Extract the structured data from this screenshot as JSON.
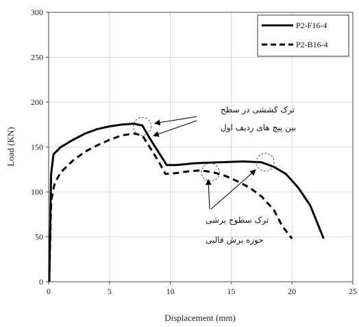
{
  "chart_data": {
    "type": "line",
    "xlabel": "Displacement (mm)",
    "ylabel": "Load (KN)",
    "xlim": [
      0,
      25
    ],
    "ylim": [
      0,
      300
    ],
    "xticks": [
      0,
      5,
      10,
      15,
      20,
      25
    ],
    "yticks": [
      0,
      50,
      100,
      150,
      200,
      250,
      300
    ],
    "grid": true,
    "legend_position": "top-right",
    "series": [
      {
        "name": "P2-F16-4",
        "style": "solid",
        "color": "#000000",
        "points": [
          [
            0.05,
            0
          ],
          [
            0.1,
            40
          ],
          [
            0.2,
            120
          ],
          [
            0.4,
            142
          ],
          [
            1,
            150
          ],
          [
            2,
            158
          ],
          [
            3,
            165
          ],
          [
            4,
            170
          ],
          [
            5,
            173
          ],
          [
            6,
            175
          ],
          [
            7,
            176
          ],
          [
            7.7,
            174
          ],
          [
            8.3,
            160
          ],
          [
            9,
            145
          ],
          [
            9.7,
            130
          ],
          [
            10.5,
            130
          ],
          [
            12,
            132
          ],
          [
            14,
            133
          ],
          [
            16,
            134
          ],
          [
            17.5,
            133
          ],
          [
            18.5,
            128
          ],
          [
            19.5,
            120
          ],
          [
            20.5,
            105
          ],
          [
            21.5,
            85
          ],
          [
            22.6,
            48
          ]
        ]
      },
      {
        "name": "P2-B16-4",
        "style": "dashed",
        "color": "#000000",
        "points": [
          [
            0.05,
            0
          ],
          [
            0.1,
            30
          ],
          [
            0.2,
            90
          ],
          [
            0.5,
            110
          ],
          [
            1,
            122
          ],
          [
            2,
            135
          ],
          [
            3,
            145
          ],
          [
            4,
            152
          ],
          [
            5,
            158
          ],
          [
            6,
            163
          ],
          [
            7,
            165
          ],
          [
            7.7,
            163
          ],
          [
            8.3,
            150
          ],
          [
            9,
            135
          ],
          [
            9.6,
            120
          ],
          [
            10.5,
            121
          ],
          [
            11.5,
            123
          ],
          [
            12.5,
            124
          ],
          [
            13.5,
            122
          ],
          [
            14.5,
            118
          ],
          [
            15.5,
            112
          ],
          [
            16.5,
            105
          ],
          [
            17.5,
            95
          ],
          [
            18.5,
            80
          ],
          [
            19.2,
            62
          ],
          [
            20,
            48
          ]
        ]
      }
    ],
    "circles": [
      {
        "x": 7.7,
        "y": 173
      },
      {
        "x": 13.3,
        "y": 122
      },
      {
        "x": 17.8,
        "y": 133
      }
    ],
    "annotations": [
      {
        "lines": [
          "ترک کششی در سطح",
          "بین پیچ های ردیف اول"
        ]
      },
      {
        "lines": [
          "ترک سطوح برشی",
          "حوزه برش قالبی"
        ]
      }
    ]
  }
}
